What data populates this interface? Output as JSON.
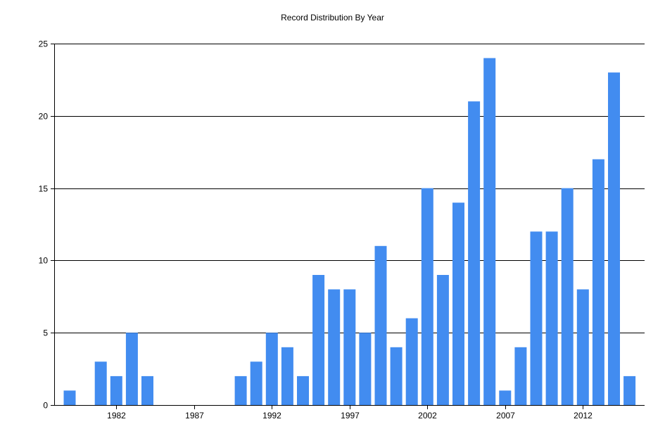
{
  "chart_data": {
    "type": "bar",
    "title": "Record Distribution By Year",
    "xlabel": "",
    "ylabel": "",
    "x": [
      1979,
      1980,
      1981,
      1982,
      1983,
      1984,
      1985,
      1986,
      1987,
      1988,
      1989,
      1990,
      1991,
      1992,
      1993,
      1994,
      1995,
      1996,
      1997,
      1998,
      1999,
      2000,
      2001,
      2002,
      2003,
      2004,
      2005,
      2006,
      2007,
      2008,
      2009,
      2010,
      2011,
      2012,
      2013,
      2014,
      2015
    ],
    "values": [
      1,
      0,
      3,
      2,
      5,
      2,
      0,
      0,
      0,
      0,
      0,
      2,
      3,
      5,
      4,
      2,
      9,
      8,
      8,
      5,
      11,
      4,
      6,
      15,
      9,
      14,
      21,
      24,
      1,
      4,
      12,
      12,
      15,
      8,
      17,
      23,
      2
    ],
    "x_tick_labels": [
      "1982",
      "1987",
      "1992",
      "1997",
      "2002",
      "2007",
      "2012"
    ],
    "y_tick_labels": [
      "0",
      "5",
      "10",
      "15",
      "20",
      "25"
    ],
    "ylim": [
      0,
      25
    ],
    "grid": true,
    "bar_color": "#428cf0",
    "legend": "none"
  }
}
